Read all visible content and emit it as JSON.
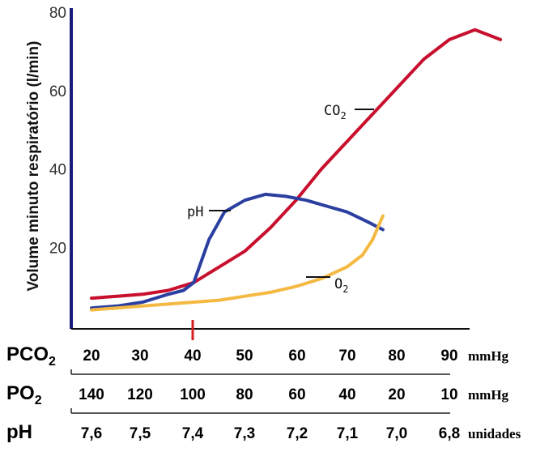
{
  "chart_data": {
    "type": "line",
    "ylabel": "Volume minuto respiratório (l/min)",
    "ylim": [
      0,
      80
    ],
    "yticks": [
      "80",
      "60",
      "40",
      "20"
    ],
    "x_rows": [
      {
        "name": "PCO",
        "sub": "2",
        "unit": "mmHg",
        "ticks": [
          "20",
          "30",
          "40",
          "50",
          "60",
          "70",
          "80",
          "90"
        ]
      },
      {
        "name": "PO",
        "sub": "2",
        "unit": "mmHg",
        "ticks": [
          "140",
          "120",
          "100",
          "80",
          "60",
          "40",
          "20",
          "10"
        ]
      },
      {
        "name": "pH",
        "sub": "",
        "unit": "unidades",
        "ticks": [
          "7,6",
          "7,5",
          "7,4",
          "7,3",
          "7,2",
          "7,1",
          "7,0",
          "6,8"
        ]
      }
    ],
    "normal_marker_index": 2,
    "series": [
      {
        "name": "CO2",
        "label_main": "CO",
        "label_sub": "2",
        "color": "#c8102e",
        "x": [
          0,
          0.5,
          1.0,
          1.5,
          2.0,
          2.5,
          3.0,
          3.5,
          4.0,
          4.5,
          5.0,
          5.5,
          6.0,
          6.5,
          7.0,
          7.5,
          7.8,
          8.0
        ],
        "y": [
          7,
          7.5,
          8,
          9,
          11,
          15,
          19,
          25,
          32,
          40,
          47,
          54,
          61,
          68,
          73,
          75.5,
          74,
          73
        ]
      },
      {
        "name": "pH",
        "label_main": "pH",
        "label_sub": "",
        "color": "#2b3fa0",
        "x": [
          0,
          0.5,
          1.0,
          1.5,
          1.8,
          2.0,
          2.3,
          2.6,
          3.0,
          3.4,
          3.8,
          4.2,
          4.6,
          5.0,
          5.4,
          5.7
        ],
        "y": [
          4.5,
          5,
          6,
          8,
          9,
          11,
          22,
          29,
          32,
          33.5,
          33,
          32,
          30.5,
          29,
          26.5,
          24.5
        ]
      },
      {
        "name": "O2",
        "label_main": "O",
        "label_sub": "2",
        "color": "#f4b942",
        "x": [
          0,
          0.5,
          1.0,
          1.5,
          2.0,
          2.5,
          3.0,
          3.5,
          4.0,
          4.5,
          5.0,
          5.3,
          5.5,
          5.7
        ],
        "y": [
          4,
          4.5,
          5,
          5.5,
          6,
          6.5,
          7.5,
          8.5,
          10,
          12,
          15,
          18,
          22,
          28
        ]
      }
    ]
  }
}
